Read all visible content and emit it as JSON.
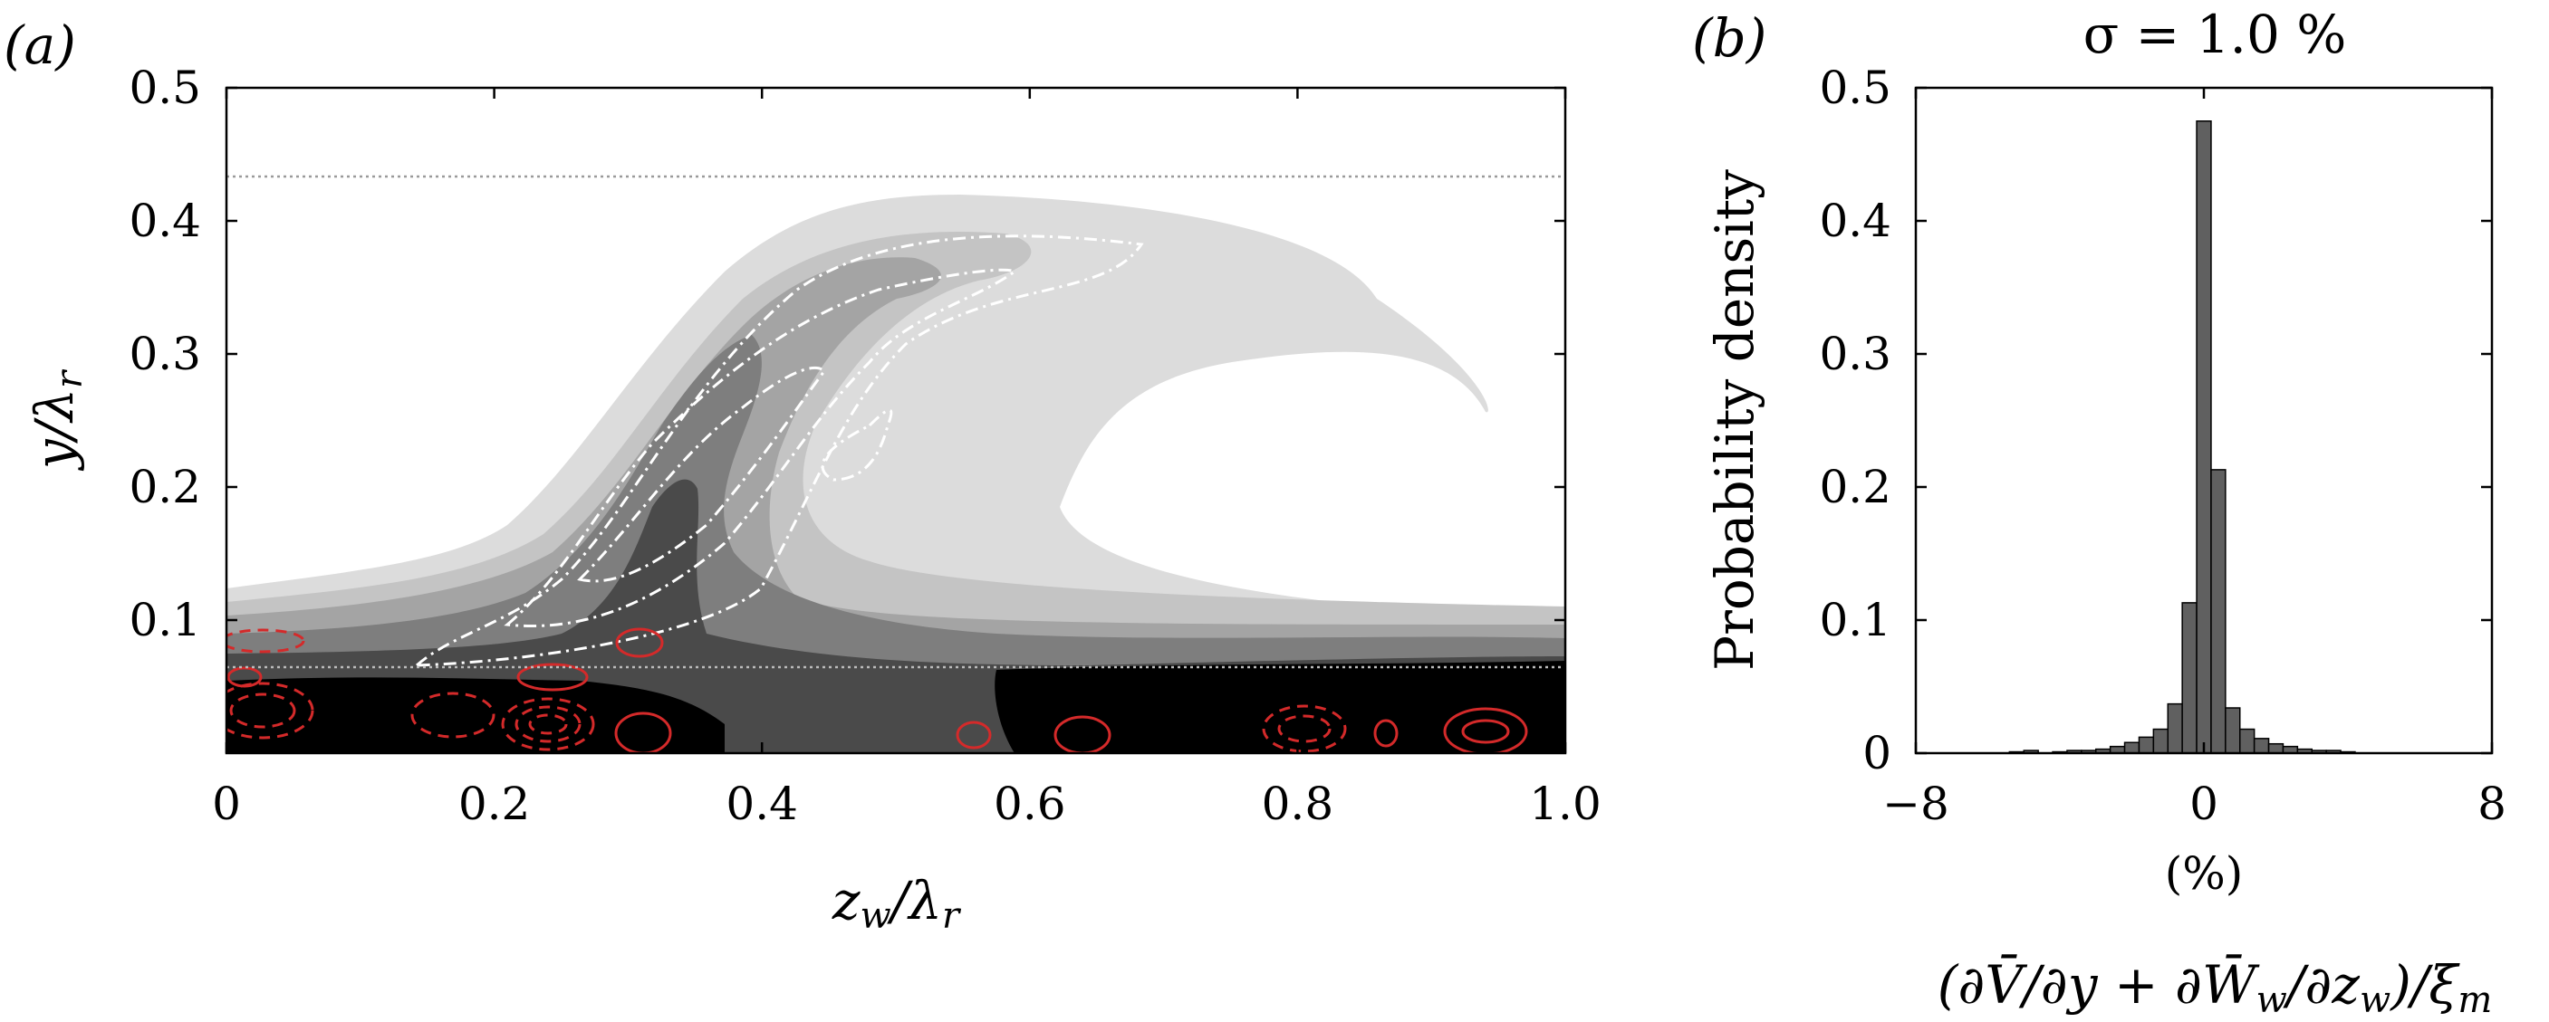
{
  "panel_labels": {
    "a": "(a)",
    "b": "(b)"
  },
  "colors": {
    "contour_levels": [
      "#dcdcdc",
      "#c4c4c4",
      "#a4a4a4",
      "#7e7e7e",
      "#4a4a4a",
      "#000000"
    ],
    "negative_dashed": "#d42a2a",
    "positive_solid": "#d42a2a",
    "dash_dot": "#ffffff",
    "bar_fill": "#606060"
  },
  "chart_data": [
    {
      "type": "heatmap",
      "panel": "(a)",
      "xlabel": "z_w/λ_r",
      "ylabel": "y/λ_r",
      "xlim": [
        0,
        1.0
      ],
      "ylim": [
        0,
        0.5
      ],
      "x_ticks": [
        "0",
        "0.2",
        "0.4",
        "0.6",
        "0.8",
        "1.0"
      ],
      "y_ticks": [
        "0.1",
        "0.2",
        "0.3",
        "0.4",
        "0.5"
      ],
      "reference_lines_y": [
        0.435,
        0.065
      ],
      "background": "grey-filled contours (light to dark)",
      "overlay_white_dashdot": "contours along the sheared lifted streak",
      "overlay_red": "solid (positive) and dashed (negative) contours near the wall"
    },
    {
      "type": "bar",
      "panel": "(b)",
      "title": "σ = 1.0 %",
      "ylabel": "Probability density",
      "xlabel_unit": "(%)",
      "xlabel": "(∂V̄/∂y + ∂W̄_w/∂z_w)/ξ_m",
      "xlim": [
        -8,
        8
      ],
      "ylim": [
        0,
        0.5
      ],
      "x_ticks": [
        "−8",
        "0",
        "8"
      ],
      "y_ticks": [
        "0",
        "0.1",
        "0.2",
        "0.3",
        "0.4",
        "0.5"
      ],
      "bin_width": 0.4,
      "bins": [
        {
          "x": -5.2,
          "v": 0.001
        },
        {
          "x": -4.8,
          "v": 0.002
        },
        {
          "x": -4.0,
          "v": 0.001
        },
        {
          "x": -3.6,
          "v": 0.002
        },
        {
          "x": -3.2,
          "v": 0.002
        },
        {
          "x": -2.8,
          "v": 0.003
        },
        {
          "x": -2.4,
          "v": 0.005
        },
        {
          "x": -2.0,
          "v": 0.008
        },
        {
          "x": -1.6,
          "v": 0.012
        },
        {
          "x": -1.2,
          "v": 0.018
        },
        {
          "x": -0.8,
          "v": 0.037
        },
        {
          "x": -0.4,
          "v": 0.113
        },
        {
          "x": 0.0,
          "v": 0.475
        },
        {
          "x": 0.4,
          "v": 0.213
        },
        {
          "x": 0.8,
          "v": 0.034
        },
        {
          "x": 1.2,
          "v": 0.018
        },
        {
          "x": 1.6,
          "v": 0.011
        },
        {
          "x": 2.0,
          "v": 0.007
        },
        {
          "x": 2.4,
          "v": 0.005
        },
        {
          "x": 2.8,
          "v": 0.003
        },
        {
          "x": 3.2,
          "v": 0.002
        },
        {
          "x": 3.6,
          "v": 0.002
        },
        {
          "x": 4.0,
          "v": 0.001
        }
      ]
    }
  ]
}
